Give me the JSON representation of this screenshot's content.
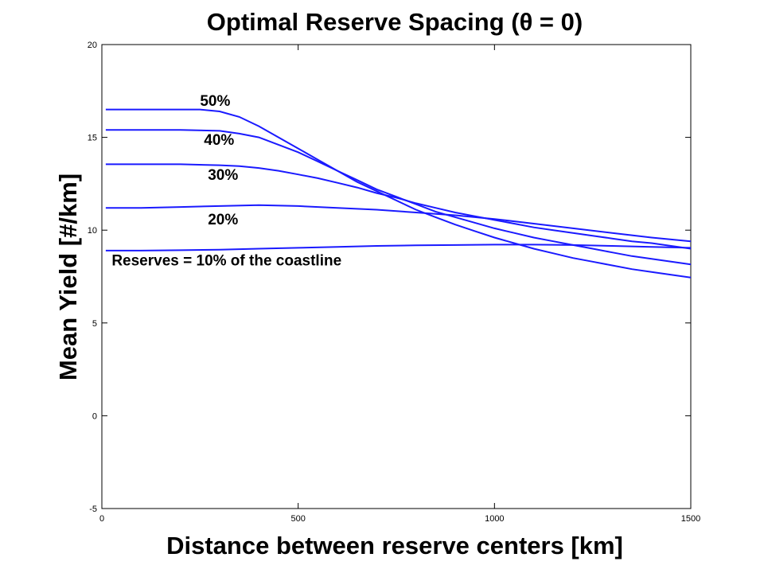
{
  "chart_data": {
    "type": "line",
    "title": "Optimal Reserve Spacing (θ = 0)",
    "xlabel": "Distance between reserve centers [km]",
    "ylabel": "Mean Yield [#/km]",
    "xlim": [
      0,
      1500
    ],
    "ylim": [
      -5,
      20
    ],
    "xticks": [
      0,
      500,
      1000,
      1500
    ],
    "yticks": [
      -5,
      0,
      5,
      10,
      15,
      20
    ],
    "grid": false,
    "line_color": "#1a1aff",
    "series": [
      {
        "name": "50%",
        "x": [
          10,
          100,
          200,
          250,
          300,
          350,
          400,
          450,
          500,
          550,
          600,
          650,
          700,
          750,
          800,
          850,
          900,
          950,
          1000,
          1050,
          1100,
          1150,
          1200,
          1250,
          1300,
          1350,
          1400,
          1450,
          1500
        ],
        "values": [
          16.5,
          16.5,
          16.5,
          16.5,
          16.4,
          16.1,
          15.6,
          15.0,
          14.4,
          13.8,
          13.2,
          12.6,
          12.1,
          11.6,
          11.1,
          10.7,
          10.3,
          9.95,
          9.6,
          9.3,
          9.0,
          8.75,
          8.5,
          8.3,
          8.1,
          7.9,
          7.75,
          7.6,
          7.45
        ]
      },
      {
        "name": "40%",
        "x": [
          10,
          100,
          200,
          300,
          350,
          400,
          450,
          500,
          550,
          600,
          650,
          700,
          750,
          800,
          850,
          900,
          950,
          1000,
          1050,
          1100,
          1150,
          1200,
          1250,
          1300,
          1350,
          1400,
          1450,
          1500
        ],
        "values": [
          15.4,
          15.4,
          15.4,
          15.35,
          15.2,
          15.0,
          14.6,
          14.2,
          13.7,
          13.2,
          12.7,
          12.2,
          11.8,
          11.4,
          11.0,
          10.7,
          10.4,
          10.1,
          9.85,
          9.6,
          9.4,
          9.2,
          9.0,
          8.8,
          8.6,
          8.45,
          8.3,
          8.15
        ]
      },
      {
        "name": "30%",
        "x": [
          10,
          100,
          200,
          300,
          350,
          400,
          450,
          500,
          550,
          600,
          650,
          700,
          750,
          800,
          850,
          900,
          950,
          1000,
          1050,
          1100,
          1150,
          1200,
          1250,
          1300,
          1350,
          1400,
          1450,
          1500
        ],
        "values": [
          13.55,
          13.55,
          13.55,
          13.5,
          13.45,
          13.35,
          13.2,
          13.0,
          12.8,
          12.55,
          12.3,
          12.0,
          11.75,
          11.45,
          11.2,
          10.95,
          10.75,
          10.55,
          10.35,
          10.15,
          10.0,
          9.85,
          9.7,
          9.55,
          9.4,
          9.3,
          9.15,
          9.0
        ]
      },
      {
        "name": "20%",
        "x": [
          10,
          100,
          200,
          300,
          400,
          500,
          600,
          700,
          800,
          900,
          1000,
          1100,
          1200,
          1300,
          1400,
          1500
        ],
        "values": [
          11.2,
          11.2,
          11.25,
          11.3,
          11.35,
          11.3,
          11.2,
          11.1,
          10.95,
          10.8,
          10.6,
          10.35,
          10.1,
          9.85,
          9.6,
          9.4
        ]
      },
      {
        "name": "Reserves = 10% of the coastline",
        "x": [
          10,
          100,
          200,
          300,
          400,
          500,
          600,
          700,
          800,
          900,
          1000,
          1100,
          1200,
          1300,
          1400,
          1500
        ],
        "values": [
          8.9,
          8.9,
          8.92,
          8.95,
          9.0,
          9.05,
          9.1,
          9.15,
          9.18,
          9.2,
          9.22,
          9.22,
          9.2,
          9.15,
          9.1,
          9.05
        ]
      }
    ],
    "annotations": [
      {
        "text": "50%",
        "x": 250,
        "y": 16.7
      },
      {
        "text": "40%",
        "x": 260,
        "y": 14.6
      },
      {
        "text": "30%",
        "x": 270,
        "y": 12.7
      },
      {
        "text": "20%",
        "x": 270,
        "y": 10.3
      },
      {
        "text": "Reserves = 10% of the coastline",
        "x": 25,
        "y": 8.1
      }
    ]
  }
}
